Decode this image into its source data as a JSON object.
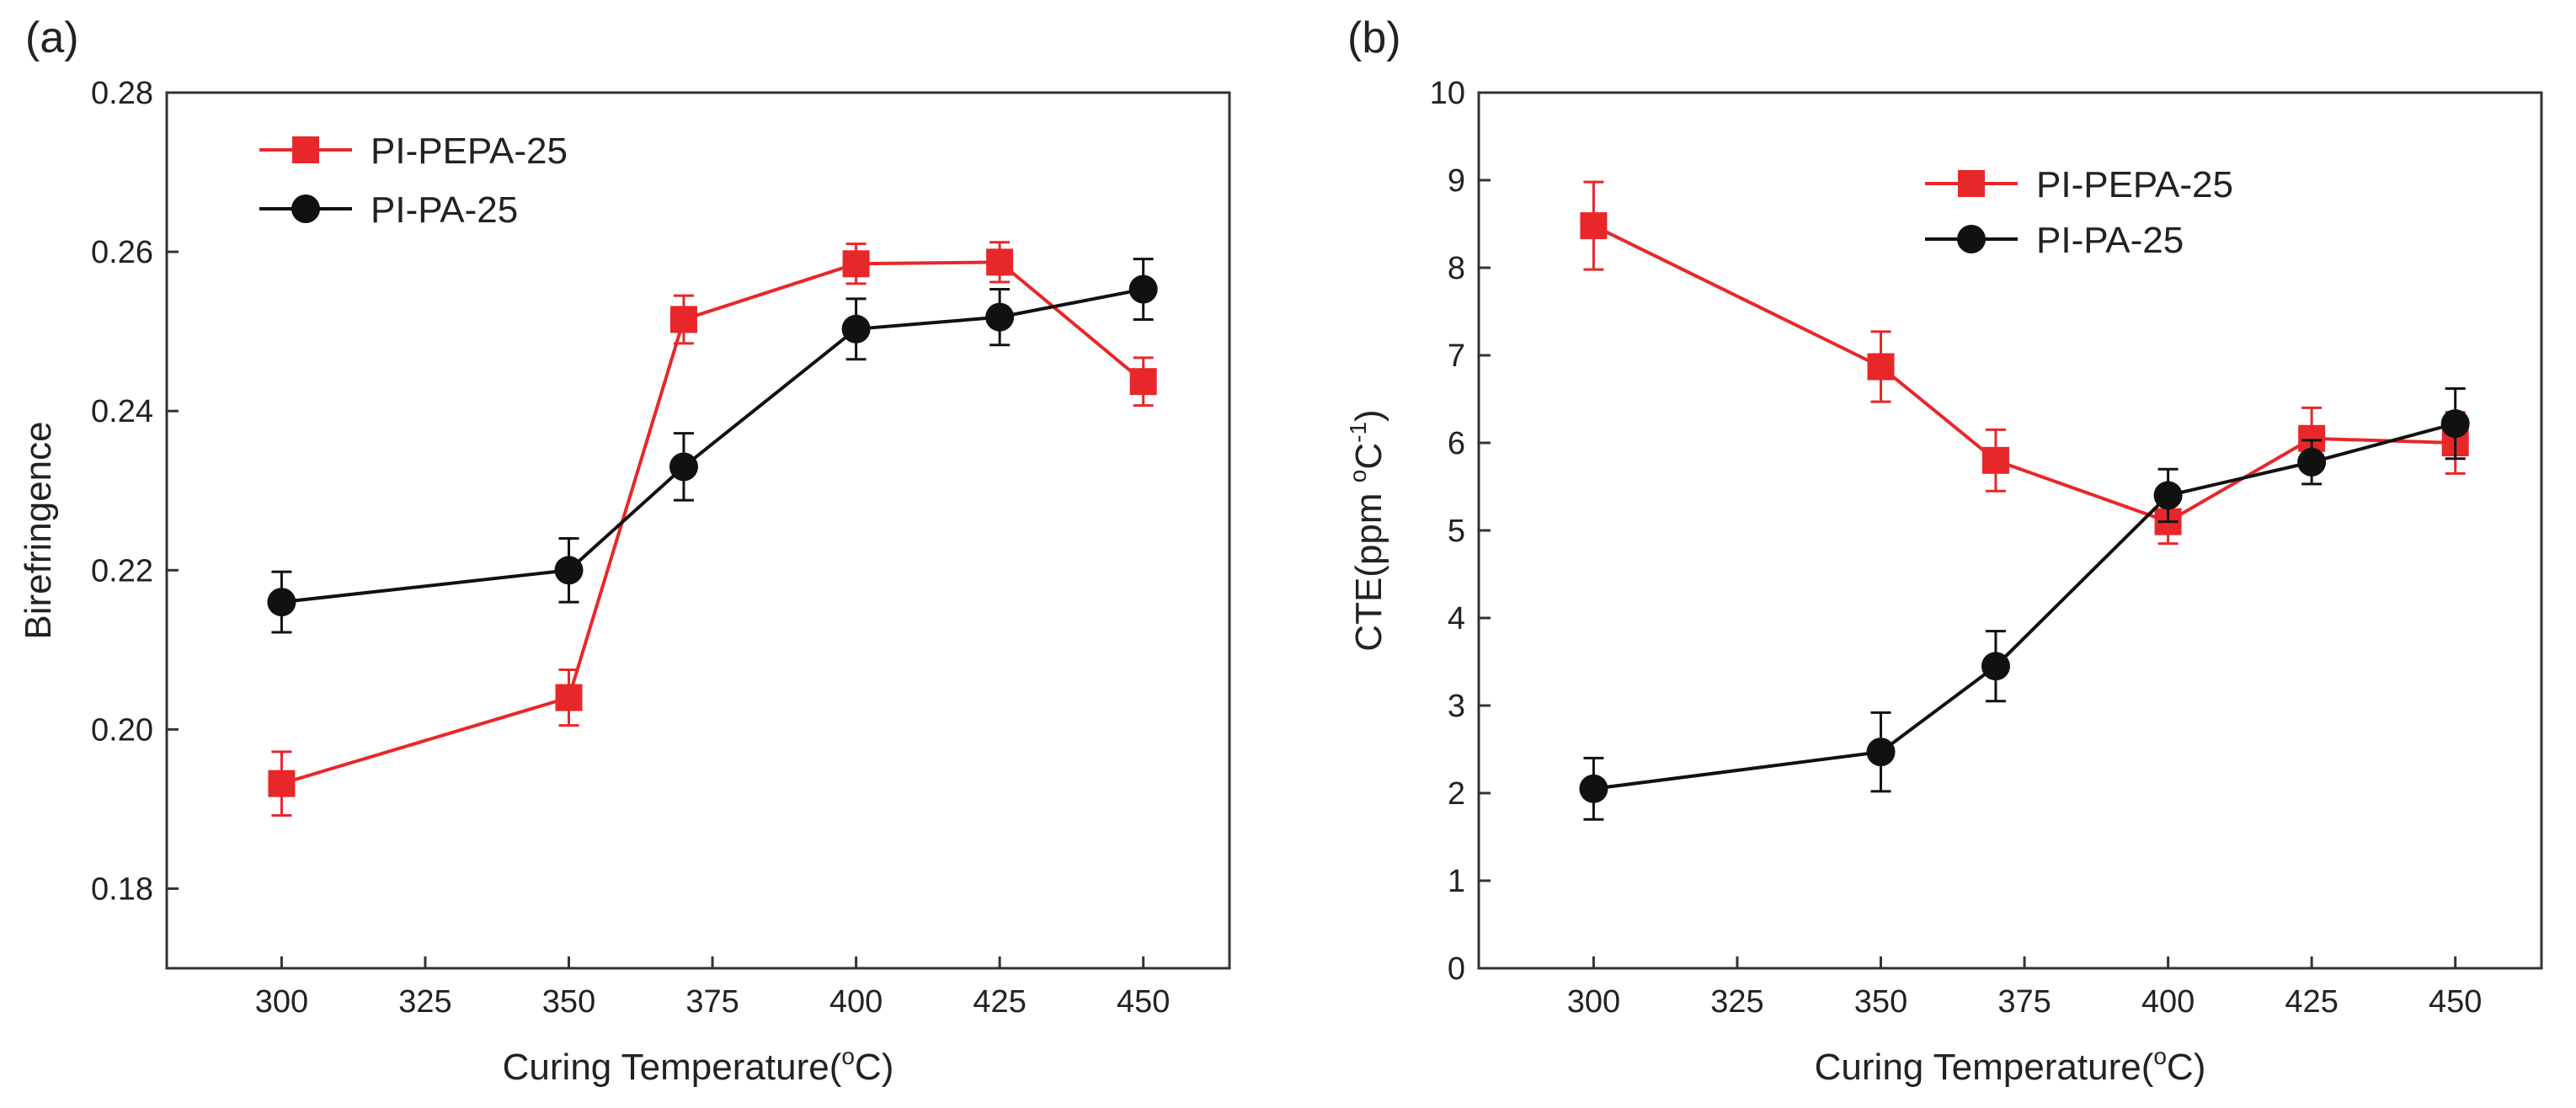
{
  "chart_data": [
    {
      "panel": "(a)",
      "type": "line",
      "xlabel": "Curing Temperature(",
      "xlabel_sup": "o",
      "xlabel_suffix": "C)",
      "ylabel": "Birefringence",
      "xlim": [
        280,
        465
      ],
      "ylim": [
        0.17,
        0.28
      ],
      "xticks": [
        300,
        325,
        350,
        375,
        400,
        425,
        450
      ],
      "yticks": [
        0.18,
        0.2,
        0.22,
        0.24,
        0.26,
        0.28
      ],
      "ytick_labels": [
        "0.18",
        "0.20",
        "0.22",
        "0.24",
        "0.26",
        "0.28"
      ],
      "legend_position": "top-left",
      "series": [
        {
          "name": "PI-PEPA-25",
          "color": "#e8272a",
          "marker": "square",
          "x": [
            300,
            350,
            370,
            400,
            425,
            450
          ],
          "y": [
            0.1932,
            0.204,
            0.2515,
            0.2585,
            0.2587,
            0.2437
          ],
          "err": [
            0.004,
            0.0035,
            0.003,
            0.0025,
            0.0025,
            0.003
          ]
        },
        {
          "name": "PI-PA-25",
          "color": "#111111",
          "marker": "circle",
          "x": [
            300,
            350,
            370,
            400,
            425,
            450
          ],
          "y": [
            0.216,
            0.22,
            0.233,
            0.2503,
            0.2518,
            0.2553
          ],
          "err": [
            0.0038,
            0.004,
            0.0042,
            0.0038,
            0.0035,
            0.0038
          ]
        }
      ]
    },
    {
      "panel": "(b)",
      "type": "line",
      "xlabel": "Curing Temperature(",
      "xlabel_sup": "o",
      "xlabel_suffix": "C)",
      "ylabel": "CTE(ppm ",
      "ylabel_sup1": "o",
      "ylabel_mid": "C",
      "ylabel_sup2": "-1",
      "ylabel_suffix": ")",
      "xlim": [
        280,
        465
      ],
      "ylim": [
        0,
        10
      ],
      "xticks": [
        300,
        325,
        350,
        375,
        400,
        425,
        450
      ],
      "yticks": [
        0,
        1,
        2,
        3,
        4,
        5,
        6,
        7,
        8,
        9,
        10
      ],
      "ytick_labels": [
        "0",
        "1",
        "2",
        "3",
        "4",
        "5",
        "6",
        "7",
        "8",
        "9",
        "10"
      ],
      "legend_position": "top-right",
      "series": [
        {
          "name": "PI-PEPA-25",
          "color": "#e8272a",
          "marker": "square",
          "x": [
            300,
            350,
            370,
            400,
            425,
            450
          ],
          "y": [
            8.48,
            6.87,
            5.8,
            5.1,
            6.05,
            6.0
          ],
          "err": [
            0.5,
            0.4,
            0.35,
            0.25,
            0.35,
            0.35
          ]
        },
        {
          "name": "PI-PA-25",
          "color": "#111111",
          "marker": "circle",
          "x": [
            300,
            350,
            370,
            400,
            425,
            450
          ],
          "y": [
            2.05,
            2.47,
            3.45,
            5.4,
            5.78,
            6.22
          ],
          "err": [
            0.35,
            0.45,
            0.4,
            0.3,
            0.25,
            0.4
          ]
        }
      ]
    }
  ]
}
